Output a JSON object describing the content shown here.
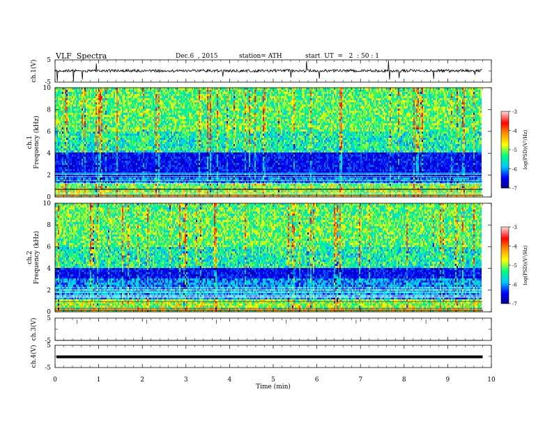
{
  "header": {
    "title": "VLF  Spectra",
    "date": "Dec.6  , 2015",
    "station": "station= ATH",
    "start": "start  UT  =   2  : 50 : 1"
  },
  "chart_data": [
    {
      "type": "line",
      "panel": "ch1-waveform",
      "ylabel": "ch.1(V)",
      "ylim": [
        -5,
        5
      ],
      "yticks": [
        "5",
        "-5"
      ],
      "trace_level": 0.1,
      "trace_color": "#000000"
    },
    {
      "type": "heatmap",
      "panel": "ch1-spectrogram",
      "ylabel": [
        "ch.1",
        "Frequency  (kHz)"
      ],
      "ylim": [
        0,
        10
      ],
      "yticks": [
        "0",
        "2",
        "4",
        "6",
        "8",
        "10"
      ],
      "quiet_band_khz": [
        1.8,
        4.0
      ],
      "colorbar": {
        "label": "log(PSD)(V²/Hz)",
        "range": [
          -7,
          -3
        ],
        "ticks": [
          "-3",
          "-4",
          "-5",
          "-6",
          "-7"
        ],
        "colors": [
          "#000080",
          "#0000ff",
          "#00c8ff",
          "#00ff80",
          "#ffff00",
          "#ff9900",
          "#ff0000",
          "#ffd0d0"
        ]
      }
    },
    {
      "type": "heatmap",
      "panel": "ch2-spectrogram",
      "ylabel": [
        "ch.2",
        "Frequency  (kHz)"
      ],
      "ylim": [
        0,
        10
      ],
      "yticks": [
        "0",
        "2",
        "4",
        "6",
        "8",
        "10"
      ],
      "quiet_band_khz": [
        3.0,
        4.0
      ],
      "colorbar": {
        "label": "log(PSD)(V²/Hz)",
        "range": [
          -7,
          -3
        ],
        "ticks": [
          "-3",
          "-4",
          "-5",
          "-6",
          "-7"
        ],
        "colors": [
          "#000080",
          "#0000ff",
          "#00c8ff",
          "#00ff80",
          "#ffff00",
          "#ff9900",
          "#ff0000",
          "#ffd0d0"
        ]
      }
    },
    {
      "type": "line",
      "panel": "ch3-waveform",
      "ylabel": "ch.3(V)",
      "ylim": [
        -5,
        5
      ],
      "yticks": [
        "5",
        "-5"
      ],
      "trace_level": -5,
      "trace_color": "#000000"
    },
    {
      "type": "line",
      "panel": "ch4-waveform",
      "ylabel": "ch.4(V)",
      "ylim": [
        -5,
        5
      ],
      "yticks": [
        "5",
        "-5"
      ],
      "trace_level": -0.2,
      "trace_color": "#000000"
    }
  ],
  "xaxis": {
    "label": "Time  (min)",
    "xlim": [
      0,
      10
    ],
    "ticks": [
      "0",
      "1",
      "2",
      "3",
      "4",
      "5",
      "6",
      "7",
      "8",
      "9",
      "10"
    ],
    "data_end_min": 9.8
  }
}
